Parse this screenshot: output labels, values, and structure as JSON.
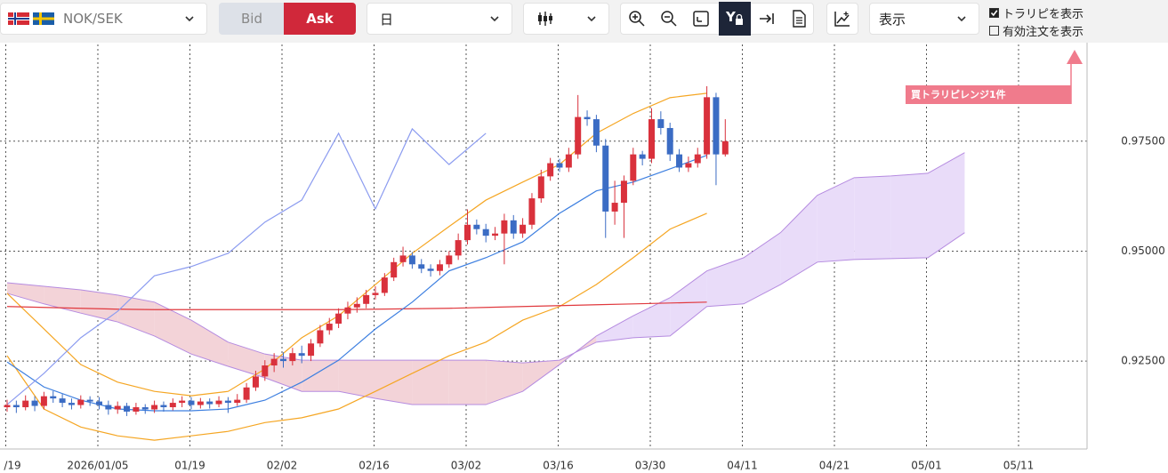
{
  "toolbar": {
    "symbol": "NOK/SEK",
    "bid": "Bid",
    "ask": "Ask",
    "period": "日",
    "display": "表示",
    "checkboxes": [
      {
        "label": "トラリピを表示",
        "checked": true
      },
      {
        "label": "有効注文を表示",
        "checked": false
      }
    ]
  },
  "chart_data": {
    "type": "candlestick",
    "up_color": "#d9313c",
    "down_color": "#3b6cc4",
    "open": [
      0.9145,
      0.915,
      0.9145,
      0.916,
      0.9148,
      0.917,
      0.9165,
      0.9155,
      0.915,
      0.9162,
      0.9158,
      0.915,
      0.914,
      0.9148,
      0.9135,
      0.9145,
      0.914,
      0.915,
      0.9145,
      0.9155,
      0.916,
      0.915,
      0.9158,
      0.9152,
      0.916,
      0.9155,
      0.9162,
      0.919,
      0.9215,
      0.924,
      0.9255,
      0.925,
      0.9268,
      0.9262,
      0.929,
      0.932,
      0.9335,
      0.9358,
      0.9372,
      0.938,
      0.94,
      0.9405,
      0.944,
      0.9475,
      0.949,
      0.947,
      0.946,
      0.9455,
      0.947,
      0.949,
      0.9525,
      0.956,
      0.955,
      0.9535,
      0.954,
      0.957,
      0.954,
      0.956,
      0.962,
      0.967,
      0.97,
      0.969,
      0.972,
      0.9805,
      0.98,
      0.974,
      0.959,
      0.961,
      0.966,
      0.972,
      0.971,
      0.98,
      0.978,
      0.972,
      0.969,
      0.97,
      0.972,
      0.985,
      0.972
    ],
    "high": [
      0.9162,
      0.916,
      0.9172,
      0.917,
      0.918,
      0.9182,
      0.9175,
      0.9165,
      0.9172,
      0.917,
      0.9168,
      0.916,
      0.9158,
      0.9155,
      0.9155,
      0.9152,
      0.916,
      0.9158,
      0.9165,
      0.917,
      0.9168,
      0.9166,
      0.9165,
      0.917,
      0.9168,
      0.9175,
      0.92,
      0.9228,
      0.9252,
      0.9268,
      0.927,
      0.928,
      0.9285,
      0.93,
      0.9332,
      0.9348,
      0.937,
      0.9385,
      0.9395,
      0.9412,
      0.942,
      0.945,
      0.9485,
      0.951,
      0.9498,
      0.9482,
      0.947,
      0.948,
      0.95,
      0.954,
      0.9595,
      0.9572,
      0.9562,
      0.9555,
      0.9585,
      0.9582,
      0.9575,
      0.9632,
      0.9685,
      0.9712,
      0.971,
      0.9735,
      0.9855,
      0.982,
      0.981,
      0.9755,
      0.966,
      0.9672,
      0.9735,
      0.9728,
      0.9825,
      0.9818,
      0.9792,
      0.9732,
      0.9715,
      0.9735,
      0.9875,
      0.986,
      0.98
    ],
    "low": [
      0.9135,
      0.9132,
      0.9138,
      0.9136,
      0.914,
      0.9155,
      0.9145,
      0.914,
      0.9142,
      0.9148,
      0.914,
      0.9128,
      0.913,
      0.9125,
      0.9128,
      0.913,
      0.9132,
      0.9135,
      0.9138,
      0.9145,
      0.914,
      0.9142,
      0.9142,
      0.9145,
      0.9132,
      0.9148,
      0.9155,
      0.9182,
      0.9205,
      0.9225,
      0.9235,
      0.924,
      0.9245,
      0.925,
      0.9282,
      0.931,
      0.9325,
      0.9345,
      0.936,
      0.937,
      0.939,
      0.9398,
      0.9432,
      0.9465,
      0.946,
      0.945,
      0.9442,
      0.9445,
      0.9462,
      0.948,
      0.9515,
      0.9538,
      0.952,
      0.9525,
      0.947,
      0.9528,
      0.953,
      0.955,
      0.961,
      0.966,
      0.968,
      0.968,
      0.971,
      0.9785,
      0.9725,
      0.953,
      0.956,
      0.953,
      0.965,
      0.9695,
      0.97,
      0.9765,
      0.9705,
      0.968,
      0.968,
      0.969,
      0.971,
      0.965,
      0.9715
    ],
    "close": [
      0.915,
      0.9145,
      0.916,
      0.9148,
      0.917,
      0.9165,
      0.9155,
      0.915,
      0.9162,
      0.9158,
      0.915,
      0.914,
      0.9148,
      0.9135,
      0.9145,
      0.914,
      0.915,
      0.9145,
      0.9155,
      0.916,
      0.915,
      0.9158,
      0.9152,
      0.916,
      0.9155,
      0.9162,
      0.919,
      0.9215,
      0.924,
      0.9255,
      0.925,
      0.9268,
      0.9262,
      0.929,
      0.932,
      0.9335,
      0.9358,
      0.9372,
      0.938,
      0.94,
      0.9405,
      0.944,
      0.9475,
      0.949,
      0.947,
      0.946,
      0.9455,
      0.947,
      0.949,
      0.9525,
      0.956,
      0.955,
      0.9535,
      0.954,
      0.957,
      0.954,
      0.956,
      0.962,
      0.967,
      0.97,
      0.969,
      0.972,
      0.9805,
      0.98,
      0.974,
      0.959,
      0.961,
      0.966,
      0.972,
      0.971,
      0.98,
      0.978,
      0.972,
      0.969,
      0.97,
      0.972,
      0.985,
      0.972,
      0.975
    ],
    "indicator_step": 4,
    "lines": [
      {
        "color": "#f5a623",
        "values": [
          0.9404,
          0.9323,
          0.9242,
          0.9202,
          0.9181,
          0.9171,
          0.9181,
          0.9232,
          0.9303,
          0.9353,
          0.9424,
          0.9495,
          0.9556,
          0.9616,
          0.9657,
          0.9697,
          0.9768,
          0.9813,
          0.9849,
          0.9859
        ]
      },
      {
        "color": "#f5a623",
        "values": [
          0.9262,
          0.9141,
          0.91,
          0.908,
          0.907,
          0.908,
          0.909,
          0.911,
          0.9121,
          0.9141,
          0.9181,
          0.9222,
          0.9262,
          0.9293,
          0.9343,
          0.9374,
          0.9424,
          0.9485,
          0.955,
          0.9586
        ]
      },
      {
        "color": "#e0393e",
        "values": [
          0.9374,
          0.9372,
          0.937,
          0.9368,
          0.9367,
          0.9367,
          0.9367,
          0.9367,
          0.9367,
          0.9367,
          0.9368,
          0.9369,
          0.937,
          0.9372,
          0.9374,
          0.9376,
          0.9378,
          0.938,
          0.9382,
          0.9384
        ]
      },
      {
        "color": "#3d7fe0",
        "values": [
          0.9248,
          0.9191,
          0.9161,
          0.9141,
          0.9137,
          0.9137,
          0.9141,
          0.9161,
          0.9202,
          0.9252,
          0.9323,
          0.9384,
          0.9455,
          0.9485,
          0.9521,
          0.9586,
          0.9637,
          0.9657,
          0.9687,
          0.9718
        ]
      },
      {
        "color": "#8c9cf0",
        "values": [
          0.9151,
          0.9222,
          0.9303,
          0.9363,
          0.9444,
          0.9465,
          0.9495,
          0.9566,
          0.9616,
          0.9768,
          0.9596,
          0.9778,
          0.9697,
          0.9768
        ]
      }
    ],
    "cloud": {
      "up_color": "#e9dcf9",
      "down_color": "#f3d3d8",
      "up_line": "#b58be0",
      "down_line": "#c0607a",
      "span_a": [
        0.9404,
        0.938,
        0.9359,
        0.9339,
        0.9307,
        0.9266,
        0.9238,
        0.9212,
        0.9181,
        0.9181,
        0.9165,
        0.9151,
        0.9151,
        0.9151,
        0.9181,
        0.9242,
        0.9307,
        0.9353,
        0.9394,
        0.9455,
        0.9485,
        0.9542,
        0.9627,
        0.9667,
        0.9671,
        0.9677,
        0.9724
      ],
      "span_b": [
        0.9428,
        0.942,
        0.9412,
        0.94,
        0.9384,
        0.9343,
        0.9293,
        0.9266,
        0.9252,
        0.9252,
        0.9252,
        0.9252,
        0.9252,
        0.9252,
        0.9246,
        0.9252,
        0.9293,
        0.9303,
        0.9307,
        0.9374,
        0.938,
        0.9424,
        0.9475,
        0.9481,
        0.9483,
        0.9485,
        0.9542
      ]
    },
    "ylim": [
      0.905,
      0.997
    ],
    "yticks": [
      {
        "value": 0.925,
        "label": "0.92500"
      },
      {
        "value": 0.95,
        "label": "0.95000"
      },
      {
        "value": 0.975,
        "label": "0.97500"
      }
    ],
    "xtick_labels": [
      "/19",
      "2026/01/05",
      "01/19",
      "02/02",
      "02/16",
      "03/02",
      "03/16",
      "03/30",
      "04/11",
      "04/21",
      "05/01",
      "05/11"
    ],
    "grid": true,
    "annotation": "買トラリピレンジ1件"
  }
}
